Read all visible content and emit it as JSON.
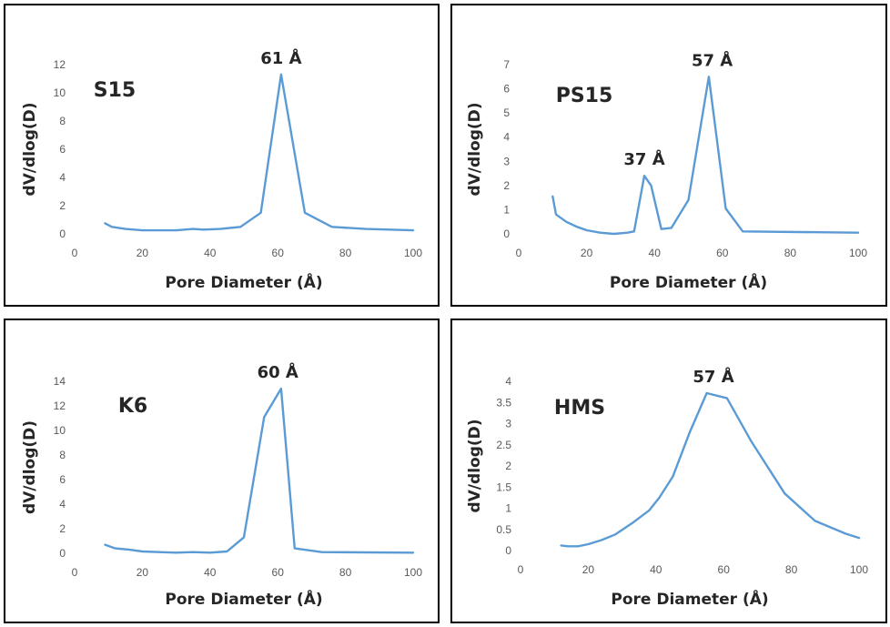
{
  "panels": [
    {
      "sample": "S15",
      "peak_labels": [
        {
          "text": "61 Å",
          "x": 61
        }
      ]
    },
    {
      "sample": "PS15",
      "peak_labels": [
        {
          "text": "57 Å",
          "x": 57
        },
        {
          "text": "37 Å",
          "x": 37
        }
      ]
    },
    {
      "sample": "K6",
      "peak_labels": [
        {
          "text": "60 Å",
          "x": 60
        }
      ]
    },
    {
      "sample": "HMS",
      "peak_labels": [
        {
          "text": "57 Å",
          "x": 57
        }
      ]
    }
  ],
  "line_color": "#5B9BD5",
  "chart_data": [
    {
      "type": "line",
      "title": "",
      "xlabel": "Pore Diameter (Å)",
      "ylabel": "dV/dlog(D)",
      "xlim": [
        0,
        100
      ],
      "ylim": [
        0,
        12
      ],
      "xticks": [
        0,
        20,
        40,
        60,
        80,
        100
      ],
      "yticks": [
        0,
        2,
        4,
        6,
        8,
        10,
        12
      ],
      "annotations": [
        "S15",
        "61 Å"
      ],
      "series": [
        {
          "x": [
            9,
            11,
            15,
            20,
            25,
            30,
            35,
            38,
            43,
            49,
            55,
            61,
            68,
            76,
            86,
            100
          ],
          "y": [
            0.75,
            0.5,
            0.35,
            0.25,
            0.25,
            0.25,
            0.35,
            0.3,
            0.35,
            0.5,
            1.5,
            11.3,
            1.5,
            0.5,
            0.35,
            0.25
          ]
        }
      ]
    },
    {
      "type": "line",
      "title": "",
      "xlabel": "Pore Diameter (Å)",
      "ylabel": "dV/dlog(D)",
      "xlim": [
        0,
        100
      ],
      "ylim": [
        0,
        7
      ],
      "xticks": [
        0,
        20,
        40,
        60,
        80,
        100
      ],
      "yticks": [
        0,
        1,
        2,
        3,
        4,
        5,
        6,
        7
      ],
      "annotations": [
        "PS15",
        "37 Å",
        "57 Å"
      ],
      "series": [
        {
          "x": [
            10,
            11,
            14,
            17,
            20,
            24,
            28,
            32,
            34,
            37,
            39,
            42,
            45,
            50,
            56,
            61,
            66,
            100
          ],
          "y": [
            1.55,
            0.8,
            0.5,
            0.3,
            0.15,
            0.05,
            0.0,
            0.05,
            0.1,
            2.4,
            2.0,
            0.2,
            0.25,
            1.4,
            6.5,
            1.05,
            0.1,
            0.05
          ]
        }
      ]
    },
    {
      "type": "line",
      "title": "",
      "xlabel": "Pore Diameter (Å)",
      "ylabel": "dV/dlog(D)",
      "xlim": [
        0,
        100
      ],
      "ylim": [
        0,
        14
      ],
      "xticks": [
        0,
        20,
        40,
        60,
        80,
        100
      ],
      "yticks": [
        0,
        2,
        4,
        6,
        8,
        10,
        12,
        14
      ],
      "annotations": [
        "K6",
        "60 Å"
      ],
      "series": [
        {
          "x": [
            9,
            12,
            16,
            20,
            25,
            30,
            35,
            40,
            45,
            50,
            56,
            61,
            65,
            73,
            100
          ],
          "y": [
            0.7,
            0.4,
            0.3,
            0.15,
            0.1,
            0.05,
            0.1,
            0.05,
            0.15,
            1.3,
            11.1,
            13.4,
            0.4,
            0.1,
            0.05
          ]
        }
      ]
    },
    {
      "type": "line",
      "title": "",
      "xlabel": "Pore Diameter (Å)",
      "ylabel": "dV/dlog(D)",
      "xlim": [
        0,
        100
      ],
      "ylim": [
        0,
        4
      ],
      "xticks": [
        0,
        20,
        40,
        60,
        80,
        100
      ],
      "yticks": [
        0,
        0.5,
        1,
        1.5,
        2,
        2.5,
        3,
        3.5,
        4
      ],
      "annotations": [
        "HMS",
        "57 Å"
      ],
      "series": [
        {
          "x": [
            12,
            14,
            17,
            20,
            24,
            28,
            33,
            38,
            41,
            45,
            50,
            55,
            61,
            68,
            78,
            87,
            96,
            100
          ],
          "y": [
            0.12,
            0.1,
            0.1,
            0.15,
            0.25,
            0.38,
            0.65,
            0.95,
            1.25,
            1.75,
            2.8,
            3.72,
            3.6,
            2.6,
            1.35,
            0.7,
            0.4,
            0.3
          ]
        }
      ]
    }
  ]
}
